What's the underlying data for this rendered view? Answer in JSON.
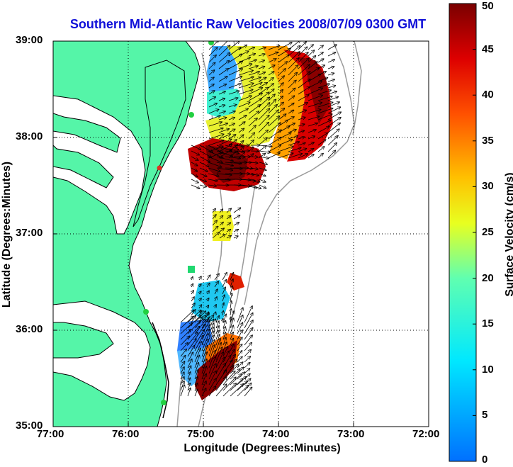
{
  "title": "Southern Mid-Atlantic Raw Velocities 2008/07/09 0300 GMT",
  "xlabel": "Longitude (Degrees:Minutes)",
  "ylabel": "Latitude (Degrees:Minutes)",
  "colorbar_label": "Surface Velocity (cm/s)",
  "colors": {
    "land": "#55f5a8",
    "coastline": "#000000",
    "bathymetry": "#9a9a9a",
    "station": "#22d040",
    "station_alt": "#e03020"
  },
  "chart_data": {
    "type": "heatmap",
    "x_ticks": [
      "77:00",
      "76:00",
      "75:00",
      "74:00",
      "73:00",
      "72:00"
    ],
    "y_ticks": [
      "39:00",
      "38:00",
      "37:00",
      "36:00",
      "35:00"
    ],
    "xlim": [
      -77,
      -72
    ],
    "ylim": [
      35,
      39
    ],
    "grid": true,
    "colorbar": {
      "ticks": [
        "0",
        "5",
        "10",
        "15",
        "20",
        "25",
        "30",
        "35",
        "40",
        "45",
        "50"
      ],
      "range": [
        0,
        50
      ],
      "colormap": "jet"
    },
    "stations": [
      {
        "lon": -75.1,
        "lat": 39.0,
        "color": "green"
      },
      {
        "lon": -75.15,
        "lat": 38.23,
        "color": "green"
      },
      {
        "lon": -75.55,
        "lat": 37.68,
        "color": "red"
      },
      {
        "lon": -75.72,
        "lat": 36.2,
        "color": "green"
      },
      {
        "lon": -75.55,
        "lat": 35.2,
        "color": "green"
      }
    ],
    "velocity_regions": [
      {
        "lon": -75.0,
        "lat": 38.7,
        "speed": 10
      },
      {
        "lon": -74.85,
        "lat": 38.5,
        "speed": 15
      },
      {
        "lon": -74.5,
        "lat": 38.75,
        "speed": 28
      },
      {
        "lon": -74.2,
        "lat": 38.85,
        "speed": 35
      },
      {
        "lon": -73.9,
        "lat": 38.8,
        "speed": 43
      },
      {
        "lon": -73.65,
        "lat": 38.6,
        "speed": 48
      },
      {
        "lon": -73.75,
        "lat": 38.2,
        "speed": 42
      },
      {
        "lon": -74.1,
        "lat": 38.3,
        "speed": 35
      },
      {
        "lon": -74.6,
        "lat": 38.3,
        "speed": 27
      },
      {
        "lon": -74.9,
        "lat": 38.15,
        "speed": 24
      },
      {
        "lon": -75.0,
        "lat": 37.8,
        "speed": 46
      },
      {
        "lon": -74.6,
        "lat": 37.7,
        "speed": 48
      },
      {
        "lon": -74.75,
        "lat": 37.05,
        "speed": 28
      },
      {
        "lon": -74.6,
        "lat": 36.3,
        "speed": 14
      },
      {
        "lon": -74.75,
        "lat": 36.0,
        "speed": 10
      },
      {
        "lon": -74.95,
        "lat": 35.7,
        "speed": 8
      },
      {
        "lon": -74.65,
        "lat": 35.7,
        "speed": 38
      },
      {
        "lon": -74.75,
        "lat": 35.45,
        "speed": 48
      }
    ]
  }
}
